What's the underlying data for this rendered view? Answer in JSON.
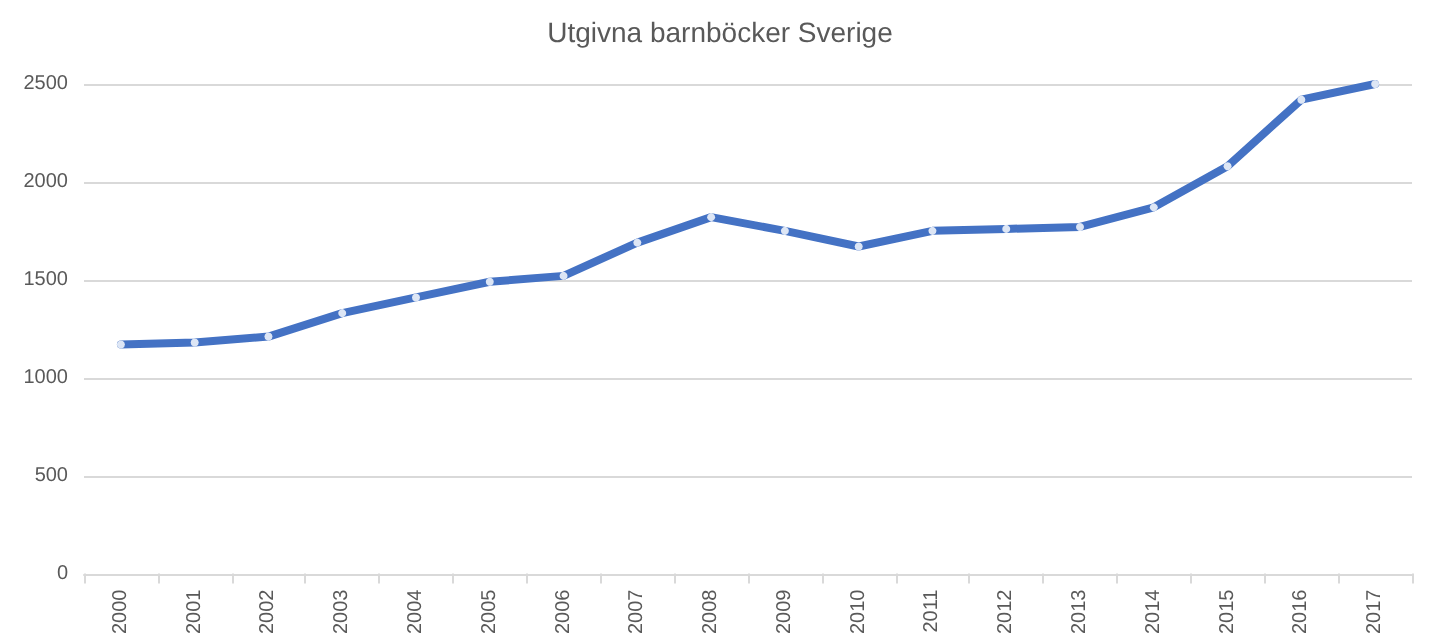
{
  "chart_data": {
    "type": "line",
    "title": "Utgivna barnböcker Sverige",
    "categories": [
      "2000",
      "2001",
      "2002",
      "2003",
      "2004",
      "2005",
      "2006",
      "2007",
      "2008",
      "2009",
      "2010",
      "2011",
      "2012",
      "2013",
      "2014",
      "2015",
      "2016",
      "2017"
    ],
    "series": [
      {
        "color": "#4472c4",
        "values": [
          1170,
          1180,
          1210,
          1330,
          1410,
          1490,
          1520,
          1690,
          1820,
          1750,
          1670,
          1750,
          1760,
          1770,
          1870,
          2080,
          2420,
          2500
        ]
      }
    ],
    "ylim": [
      0,
      2500
    ],
    "yticks": [
      0,
      500,
      1000,
      1500,
      2000,
      2500
    ],
    "grid": "y",
    "marker": "circle",
    "line_style": "solid"
  }
}
